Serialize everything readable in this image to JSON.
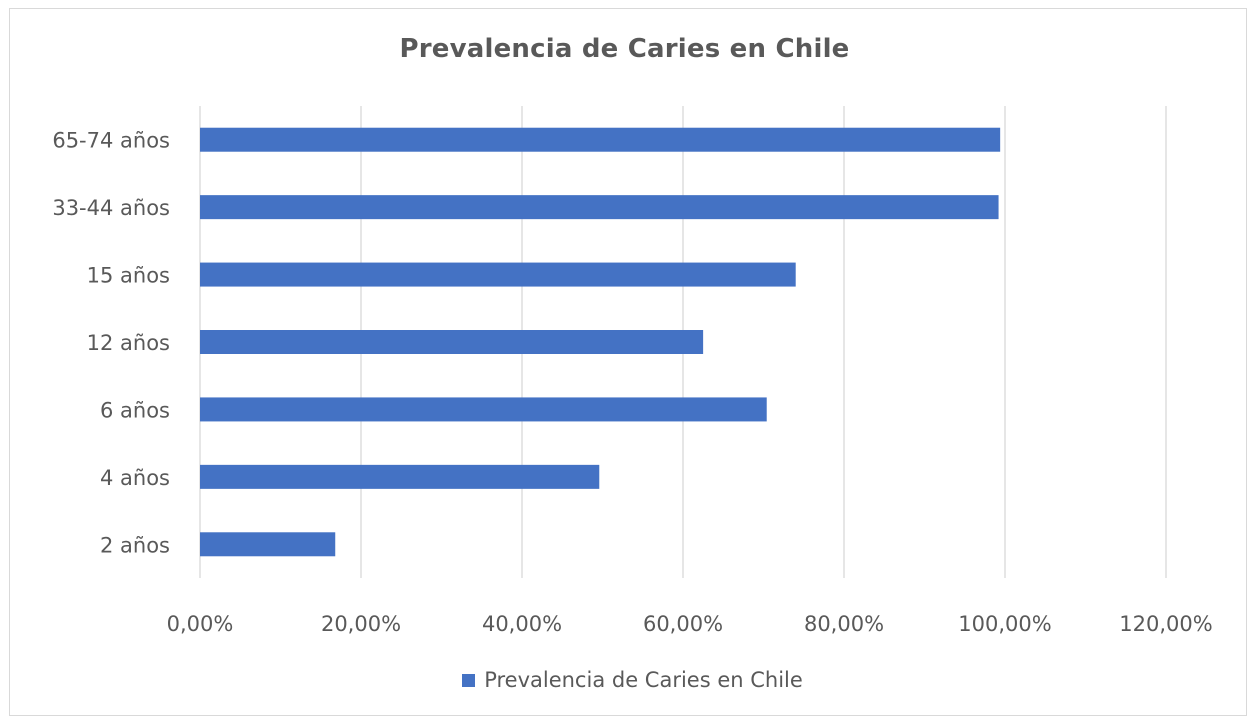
{
  "chart_data": {
    "type": "bar",
    "orientation": "horizontal",
    "title": "Prevalencia de Caries en Chile",
    "categories": [
      "2 años",
      "4 años",
      "6 años",
      "12 años",
      "15 años",
      "33-44 años",
      "65-74 años"
    ],
    "series": [
      {
        "name": "Prevalencia de Caries en Chile",
        "values": [
          16.8,
          49.6,
          70.4,
          62.5,
          74.0,
          99.2,
          99.4
        ],
        "color": "#4472c4"
      }
    ],
    "x_ticks": [
      "0,00%",
      "20,00%",
      "40,00%",
      "60,00%",
      "80,00%",
      "100,00%",
      "120,00%"
    ],
    "xlim": [
      0,
      120
    ],
    "grid": "vertical",
    "legend_position": "bottom"
  }
}
